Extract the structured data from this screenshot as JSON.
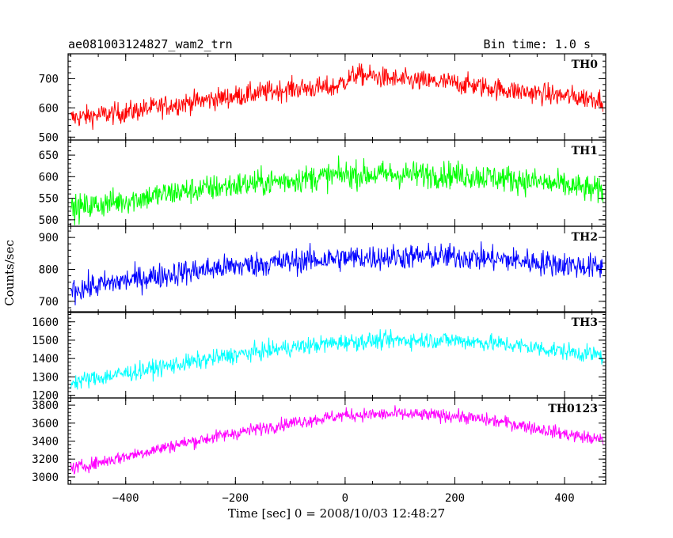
{
  "header": {
    "left_title": "ae081003124827_wam2_trn",
    "right_title": "Bin time: 1.0 s"
  },
  "chart_data": {
    "type": "line",
    "xlabel": "Time [sec] 0 = 2008/10/03 12:48:27",
    "ylabel": "Counts/sec",
    "xlim": [
      -505,
      475
    ],
    "xticks": [
      -400,
      -200,
      0,
      200,
      400
    ],
    "x_range_data": [
      -500,
      470
    ],
    "bin_time_s": 1.0,
    "grid": false,
    "legend": "none (panel labels top-right)",
    "panels": [
      {
        "name": "TH0",
        "color": "#ff0000",
        "ylim": [
          490,
          785
        ],
        "yticks": [
          500,
          600,
          700
        ],
        "trend": {
          "x": [
            -500,
            -400,
            -300,
            -200,
            -100,
            -20,
            20,
            100,
            200,
            300,
            400,
            470
          ],
          "y": [
            565,
            585,
            615,
            640,
            665,
            670,
            715,
            695,
            685,
            660,
            640,
            630
          ]
        },
        "noise_amplitude": 35
      },
      {
        "name": "TH1",
        "color": "#00ff00",
        "ylim": [
          485,
          685
        ],
        "yticks": [
          500,
          550,
          600,
          650
        ],
        "trend": {
          "x": [
            -500,
            -400,
            -300,
            -200,
            -100,
            0,
            100,
            200,
            300,
            400,
            470
          ],
          "y": [
            525,
            545,
            565,
            580,
            592,
            605,
            605,
            605,
            595,
            580,
            565
          ]
        },
        "noise_amplitude": 30
      },
      {
        "name": "TH2",
        "color": "#0000ff",
        "ylim": [
          665,
          935
        ],
        "yticks": [
          700,
          800,
          900
        ],
        "trend": {
          "x": [
            -500,
            -400,
            -300,
            -200,
            -100,
            0,
            100,
            200,
            300,
            400,
            470
          ],
          "y": [
            735,
            765,
            790,
            810,
            825,
            835,
            840,
            840,
            830,
            815,
            805
          ]
        },
        "noise_amplitude": 38
      },
      {
        "name": "TH3",
        "color": "#00ffff",
        "ylim": [
          1185,
          1655
        ],
        "yticks": [
          1200,
          1300,
          1400,
          1500,
          1600
        ],
        "trend": {
          "x": [
            -500,
            -400,
            -300,
            -200,
            -100,
            0,
            100,
            200,
            300,
            400,
            470
          ],
          "y": [
            1270,
            1320,
            1370,
            1420,
            1460,
            1490,
            1500,
            1500,
            1475,
            1440,
            1415
          ]
        },
        "noise_amplitude": 45
      },
      {
        "name": "TH0123",
        "color": "#ff00ff",
        "ylim": [
          2920,
          3880
        ],
        "yticks": [
          3000,
          3200,
          3400,
          3600,
          3800
        ],
        "trend": {
          "x": [
            -500,
            -400,
            -300,
            -200,
            -100,
            0,
            100,
            200,
            300,
            400,
            470
          ],
          "y": [
            3090,
            3230,
            3370,
            3490,
            3600,
            3690,
            3700,
            3680,
            3600,
            3480,
            3410
          ]
        },
        "noise_amplitude": 70
      }
    ]
  }
}
